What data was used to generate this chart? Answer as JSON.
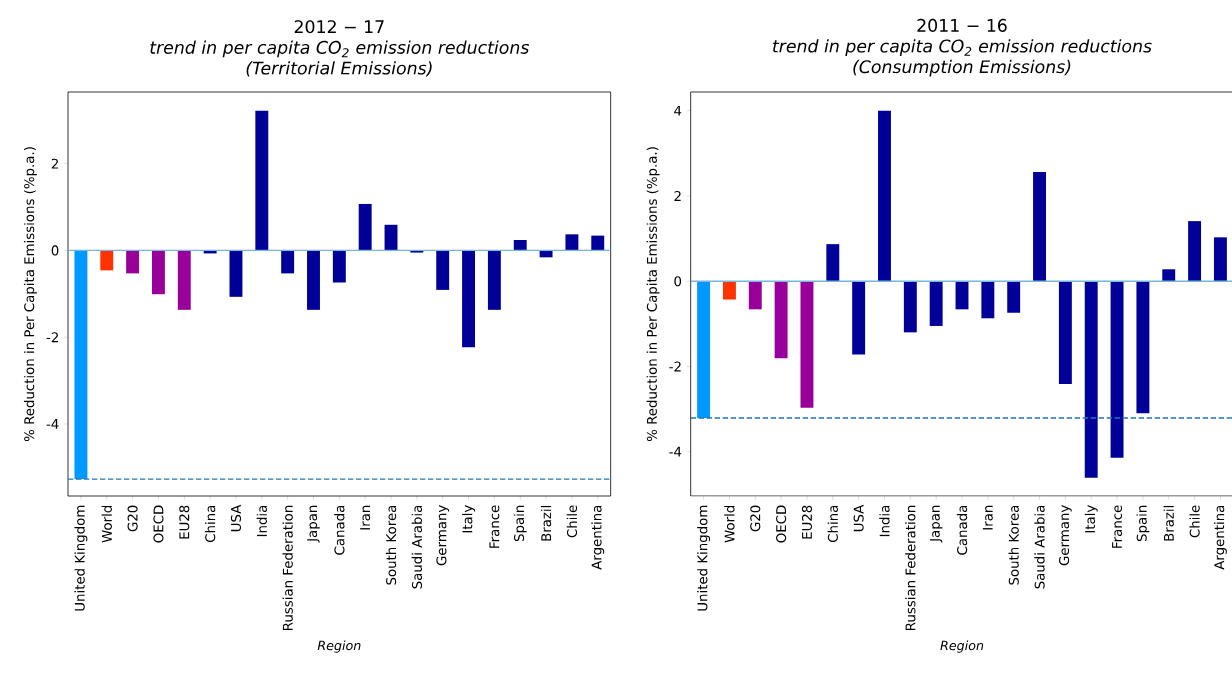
{
  "chart_data": [
    {
      "type": "bar",
      "title": "2012 − 17",
      "subtitle": "trend in per capita CO$_{2}$ emission reductions",
      "annotations": [
        "(Territorial Emissions)"
      ],
      "xlabel": "Region",
      "ylabel": "% Reduction in Per Capita Emissions (%p.a.)",
      "categories": [
        "United Kingdom",
        "World",
        "G20",
        "OECD",
        "EU28",
        "China",
        "USA",
        "India",
        "Russian Federation",
        "Japan",
        "Canada",
        "Iran",
        "South Korea",
        "Saudi Arabia",
        "Germany",
        "Italy",
        "France",
        "Spain",
        "Brazil",
        "Chile",
        "Argentina"
      ],
      "values": [
        -5.27,
        -0.46,
        -0.53,
        -1.01,
        -1.37,
        -0.07,
        -1.07,
        3.22,
        -0.53,
        -1.37,
        -0.74,
        1.07,
        0.59,
        -0.05,
        -0.91,
        -2.23,
        -1.37,
        0.24,
        -0.16,
        0.37,
        0.34
      ],
      "colors": [
        "#0099ff",
        "#ff3300",
        "#990099",
        "#990099",
        "#990099",
        "#000099",
        "#000099",
        "#000099",
        "#000099",
        "#000099",
        "#000099",
        "#000099",
        "#000099",
        "#000099",
        "#000099",
        "#000099",
        "#000099",
        "#000099",
        "#000099",
        "#000099",
        "#000099"
      ],
      "ylim": [
        -5.66,
        3.65
      ],
      "yticks": [
        -4,
        -2,
        0,
        2
      ],
      "ref_lines": [
        {
          "axis": "y",
          "value": 0,
          "color": "#76b5dd",
          "line_style": "solid"
        },
        {
          "axis": "y",
          "value": -5.27,
          "color": "#1f77b4",
          "line_style": "dashed"
        }
      ]
    },
    {
      "type": "bar",
      "title": "2011 − 16",
      "subtitle": "trend in per capita CO$_{2}$ emission reductions",
      "annotations": [
        "(Consumption Emissions)"
      ],
      "xlabel": "Region",
      "ylabel": "% Reduction in Per Capita Emissions (%p.a.)",
      "categories": [
        "United Kingdom",
        "World",
        "G20",
        "OECD",
        "EU28",
        "China",
        "USA",
        "India",
        "Russian Federation",
        "Japan",
        "Canada",
        "Iran",
        "South Korea",
        "Saudi Arabia",
        "Germany",
        "Italy",
        "France",
        "Spain",
        "Brazil",
        "Chile",
        "Argentina"
      ],
      "values": [
        -3.21,
        -0.43,
        -0.66,
        -1.81,
        -2.97,
        0.87,
        -1.72,
        4.0,
        -1.2,
        -1.05,
        -0.66,
        -0.87,
        -0.74,
        2.56,
        -2.41,
        -4.61,
        -4.14,
        -3.1,
        0.28,
        1.41,
        1.03
      ],
      "colors": [
        "#0099ff",
        "#ff3300",
        "#990099",
        "#990099",
        "#990099",
        "#000099",
        "#000099",
        "#000099",
        "#000099",
        "#000099",
        "#000099",
        "#000099",
        "#000099",
        "#000099",
        "#000099",
        "#000099",
        "#000099",
        "#000099",
        "#000099",
        "#000099",
        "#000099"
      ],
      "ylim": [
        -5.04,
        4.44
      ],
      "yticks": [
        -4,
        -2,
        0,
        2,
        4
      ],
      "ref_lines": [
        {
          "axis": "y",
          "value": 0,
          "color": "#76b5dd",
          "line_style": "solid"
        },
        {
          "axis": "y",
          "value": -3.21,
          "color": "#1f77b4",
          "line_style": "dashed"
        }
      ]
    }
  ]
}
